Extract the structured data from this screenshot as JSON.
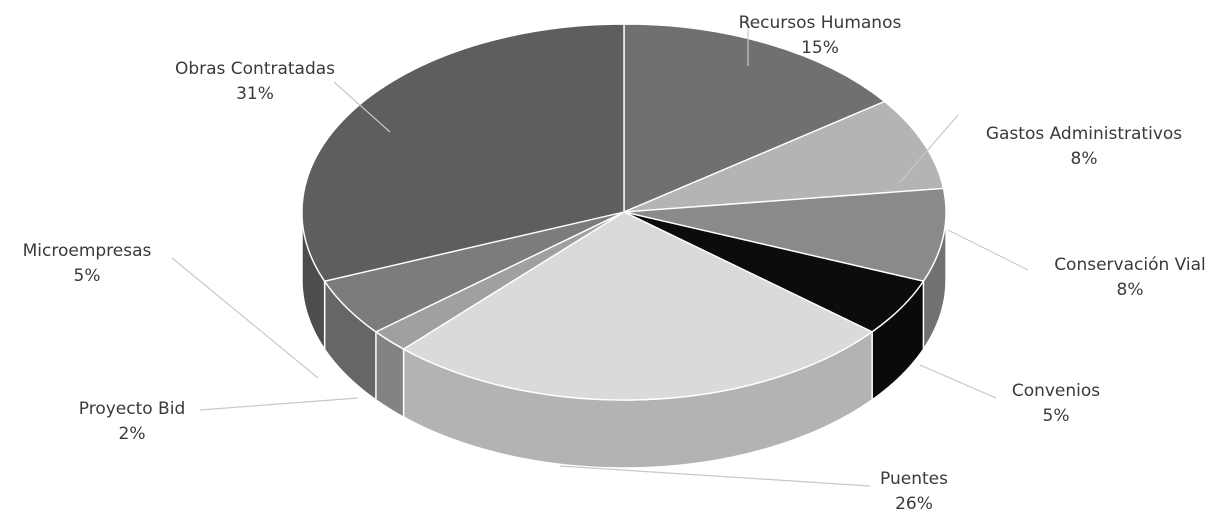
{
  "chart_data": {
    "type": "pie",
    "title": "",
    "labels": [
      "Recursos Humanos",
      "Gastos Administrativos",
      "Conservación Vial",
      "Convenios",
      "Puentes",
      "Proyecto Bid",
      "Microempresas",
      "Obras Contratadas"
    ],
    "values": [
      15,
      8,
      8,
      5,
      26,
      2,
      5,
      31
    ],
    "value_labels": [
      "15%",
      "8%",
      "8%",
      "5%",
      "26%",
      "2%",
      "5%",
      "31%"
    ],
    "colors": [
      "#707070",
      "#b4b4b4",
      "#8a8a8a",
      "#0c0c0c",
      "#dadada",
      "#a0a0a0",
      "#7c7c7c",
      "#5e5e5e"
    ],
    "legend": "none",
    "style": "3d-pie-grayscale"
  }
}
